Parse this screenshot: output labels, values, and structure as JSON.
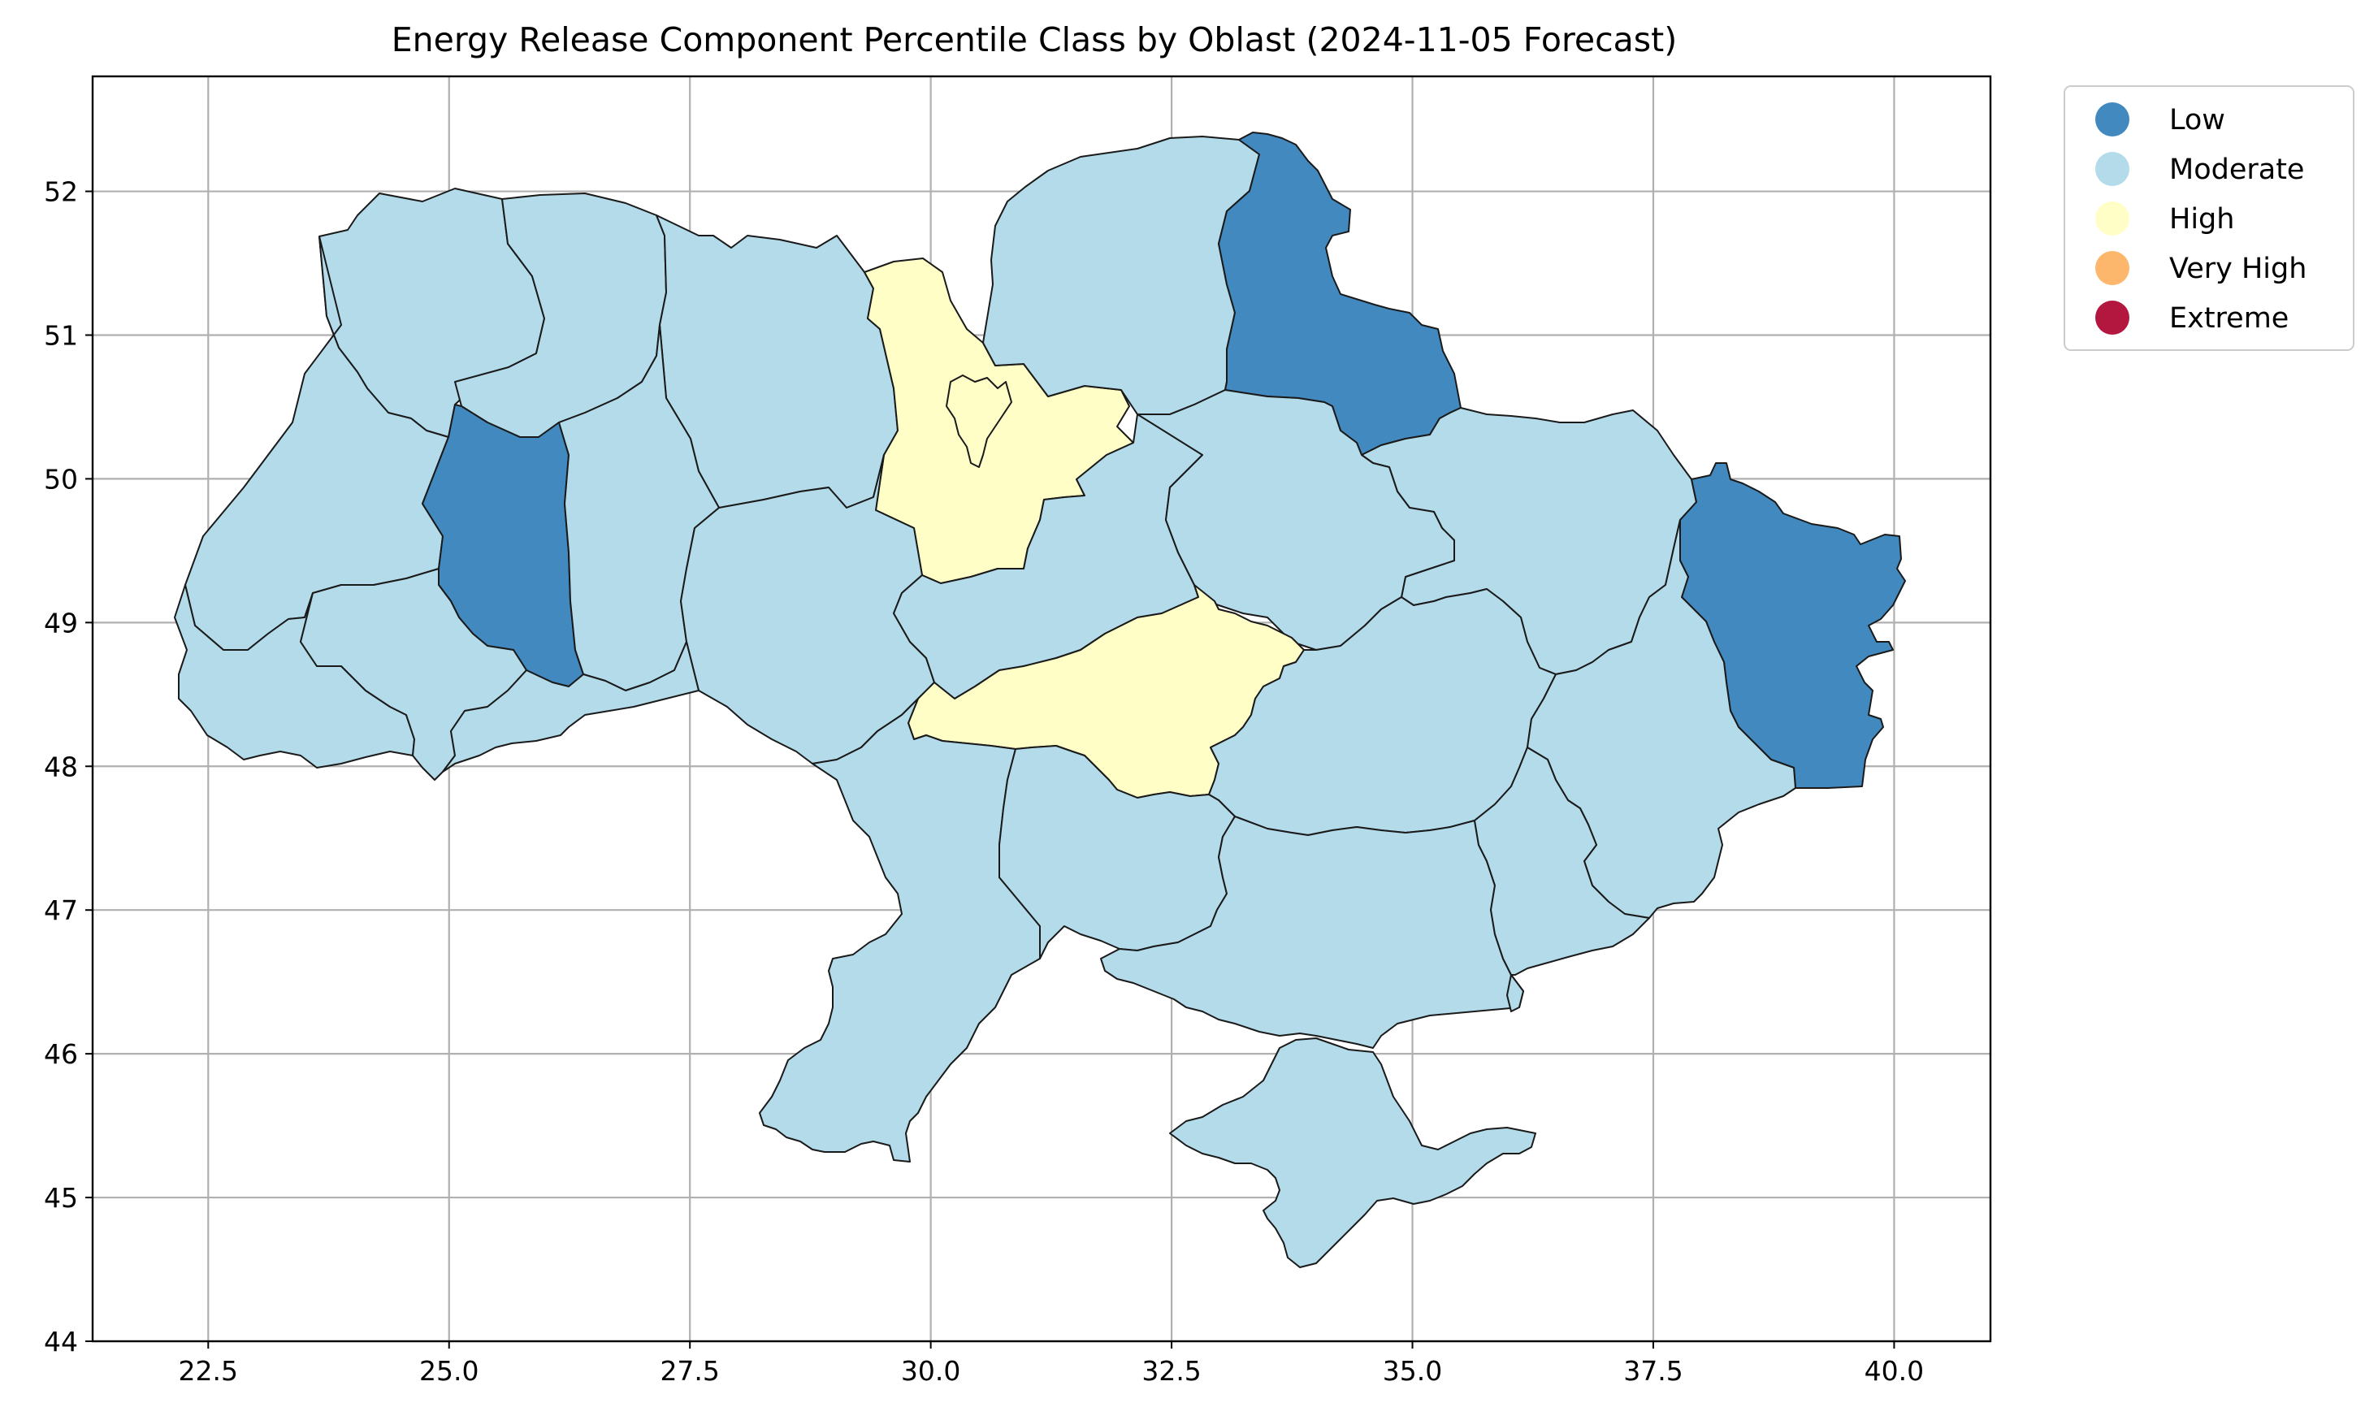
{
  "title": "Energy Release Component Percentile Class by Oblast (2024-11-05 Forecast)",
  "axes": {
    "x_ticks": [
      "22.5",
      "25.0",
      "27.5",
      "30.0",
      "32.5",
      "35.0",
      "37.5",
      "40.0"
    ],
    "x_tick_values": [
      22.5,
      25.0,
      27.5,
      30.0,
      32.5,
      35.0,
      37.5,
      40.0
    ],
    "y_ticks": [
      "44",
      "45",
      "46",
      "47",
      "48",
      "49",
      "50",
      "51",
      "52"
    ],
    "y_tick_values": [
      44,
      45,
      46,
      47,
      48,
      49,
      50,
      51,
      52
    ],
    "xlim": [
      21.3,
      41.0
    ],
    "ylim": [
      44.0,
      52.8
    ],
    "grid": true
  },
  "legend": {
    "placement": "outside-top-right",
    "items": [
      {
        "label": "Low",
        "color": "#4189bf"
      },
      {
        "label": "Moderate",
        "color": "#b3dbea"
      },
      {
        "label": "High",
        "color": "#fffec6"
      },
      {
        "label": "Very High",
        "color": "#fcb76d"
      },
      {
        "label": "Extreme",
        "color": "#b3173f"
      }
    ]
  },
  "regions": [
    {
      "id": "volyn",
      "cls": "Moderate"
    },
    {
      "id": "rivne",
      "cls": "Moderate"
    },
    {
      "id": "zhytomyr",
      "cls": "Moderate"
    },
    {
      "id": "kyiv",
      "cls": "High"
    },
    {
      "id": "chernihiv",
      "cls": "Moderate"
    },
    {
      "id": "sumy",
      "cls": "Low"
    },
    {
      "id": "kharkiv",
      "cls": "Moderate"
    },
    {
      "id": "luhansk",
      "cls": "Low"
    },
    {
      "id": "lviv",
      "cls": "Moderate"
    },
    {
      "id": "ternopil",
      "cls": "Low"
    },
    {
      "id": "khmelnytskyi",
      "cls": "Moderate"
    },
    {
      "id": "vinnytsia",
      "cls": "Moderate"
    },
    {
      "id": "cherkasy",
      "cls": "Moderate"
    },
    {
      "id": "poltava",
      "cls": "Moderate"
    },
    {
      "id": "zakarpattia",
      "cls": "Moderate"
    },
    {
      "id": "ivano-frankivsk",
      "cls": "Moderate"
    },
    {
      "id": "chernivtsi",
      "cls": "Moderate"
    },
    {
      "id": "kirovohrad",
      "cls": "High"
    },
    {
      "id": "dnipropetrovsk",
      "cls": "Moderate"
    },
    {
      "id": "donetsk",
      "cls": "Moderate"
    },
    {
      "id": "odesa",
      "cls": "Moderate"
    },
    {
      "id": "mykolaiv",
      "cls": "Moderate"
    },
    {
      "id": "kherson",
      "cls": "Moderate"
    },
    {
      "id": "zaporizhzhia",
      "cls": "Moderate"
    },
    {
      "id": "crimea",
      "cls": "Moderate"
    },
    {
      "id": "kyiv-city",
      "cls": "High"
    }
  ]
}
